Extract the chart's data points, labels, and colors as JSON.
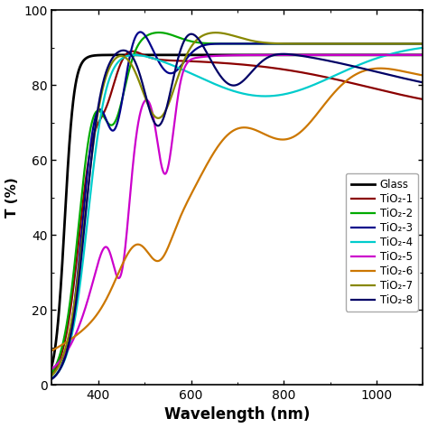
{
  "title": "",
  "xlabel": "Wavelength (nm)",
  "ylabel": "T (%)",
  "xlim": [
    300,
    1100
  ],
  "ylim": [
    0,
    100
  ],
  "xticks": [
    400,
    600,
    800,
    1000
  ],
  "yticks": [
    0,
    20,
    40,
    60,
    80,
    100
  ],
  "series": {
    "Glass": {
      "color": "#000000",
      "lw": 2.0
    },
    "TiO2-1": {
      "color": "#8b0000",
      "lw": 1.6
    },
    "TiO2-2": {
      "color": "#00aa00",
      "lw": 1.6
    },
    "TiO2-3": {
      "color": "#00008b",
      "lw": 1.6
    },
    "TiO2-4": {
      "color": "#00cccc",
      "lw": 1.6
    },
    "TiO2-5": {
      "color": "#cc00cc",
      "lw": 1.6
    },
    "TiO2-6": {
      "color": "#cc7700",
      "lw": 1.6
    },
    "TiO2-7": {
      "color": "#888800",
      "lw": 1.6
    },
    "TiO2-8": {
      "color": "#000066",
      "lw": 1.6
    }
  },
  "legend_labels": [
    "Glass",
    "TiO₂-1",
    "TiO₂-2",
    "TiO₂-3",
    "TiO₂-4",
    "TiO₂-5",
    "TiO₂-6",
    "TiO₂-7",
    "TiO₂-8"
  ],
  "legend_colors": [
    "#000000",
    "#8b0000",
    "#00aa00",
    "#00008b",
    "#00cccc",
    "#cc00cc",
    "#cc7700",
    "#888800",
    "#000066"
  ],
  "background_color": "#ffffff"
}
